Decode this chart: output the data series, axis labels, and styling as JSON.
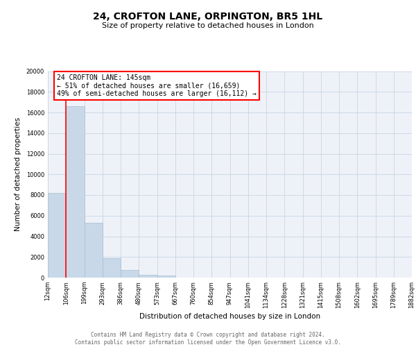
{
  "title": "24, CROFTON LANE, ORPINGTON, BR5 1HL",
  "subtitle": "Size of property relative to detached houses in London",
  "xlabel": "Distribution of detached houses by size in London",
  "ylabel": "Number of detached properties",
  "bar_color": "#c8d8e8",
  "bar_edge_color": "#a8bece",
  "grid_color": "#c8d4e4",
  "background_color": "#eef2f8",
  "bin_labels": [
    "12sqm",
    "106sqm",
    "199sqm",
    "293sqm",
    "386sqm",
    "480sqm",
    "573sqm",
    "667sqm",
    "760sqm",
    "854sqm",
    "947sqm",
    "1041sqm",
    "1134sqm",
    "1228sqm",
    "1321sqm",
    "1415sqm",
    "1508sqm",
    "1602sqm",
    "1695sqm",
    "1789sqm",
    "1882sqm"
  ],
  "bar_heights": [
    8200,
    16600,
    5300,
    1850,
    750,
    300,
    200,
    0,
    0,
    0,
    0,
    0,
    0,
    0,
    0,
    0,
    0,
    0,
    0,
    0
  ],
  "ylim": [
    0,
    20000
  ],
  "yticks": [
    0,
    2000,
    4000,
    6000,
    8000,
    10000,
    12000,
    14000,
    16000,
    18000,
    20000
  ],
  "red_line_x": 1,
  "annotation_line1": "24 CROFTON LANE: 145sqm",
  "annotation_line2": "← 51% of detached houses are smaller (16,659)",
  "annotation_line3": "49% of semi-detached houses are larger (16,112) →",
  "footer_line1": "Contains HM Land Registry data © Crown copyright and database right 2024.",
  "footer_line2": "Contains public sector information licensed under the Open Government Licence v3.0.",
  "title_fontsize": 10,
  "subtitle_fontsize": 8,
  "axis_label_fontsize": 7.5,
  "tick_fontsize": 6,
  "annotation_fontsize": 7,
  "footer_fontsize": 5.5
}
